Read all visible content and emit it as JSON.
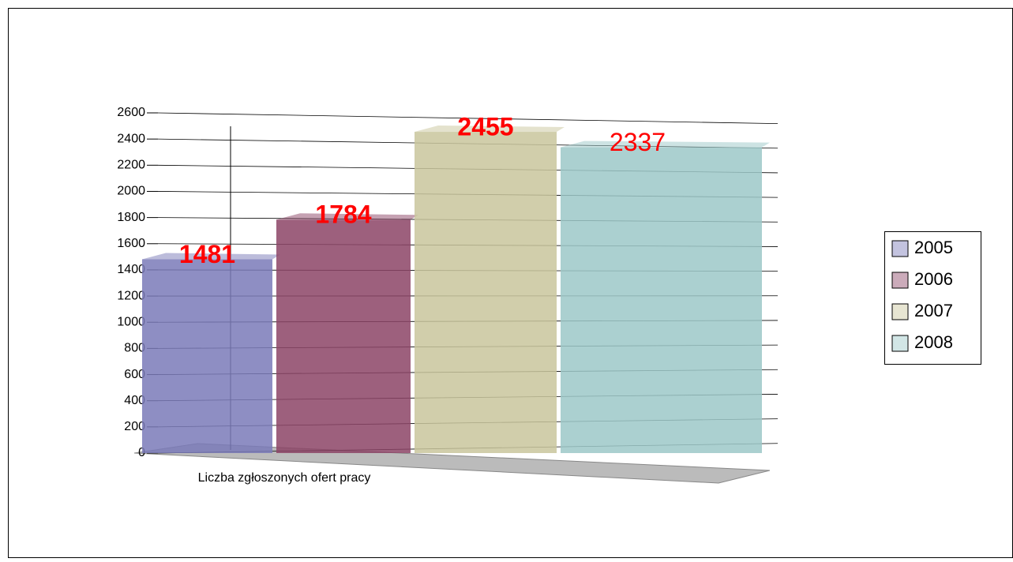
{
  "chart_data": {
    "type": "bar",
    "categories": [
      "Liczba zgłoszonych ofert pracy"
    ],
    "series": [
      {
        "name": "2005",
        "color": "#7a7ab8",
        "values": [
          1481
        ]
      },
      {
        "name": "2006",
        "color": "#8c4466",
        "values": [
          1784
        ]
      },
      {
        "name": "2007",
        "color": "#c9c59c",
        "values": [
          2455
        ]
      },
      {
        "name": "2008",
        "color": "#9cc8c8",
        "values": [
          2337
        ]
      }
    ],
    "ylim": [
      0,
      2600
    ],
    "yticks": [
      0,
      200,
      400,
      600,
      800,
      1000,
      1200,
      1400,
      1600,
      1800,
      2000,
      2200,
      2400,
      2600
    ],
    "grid": true,
    "legend": "right"
  }
}
